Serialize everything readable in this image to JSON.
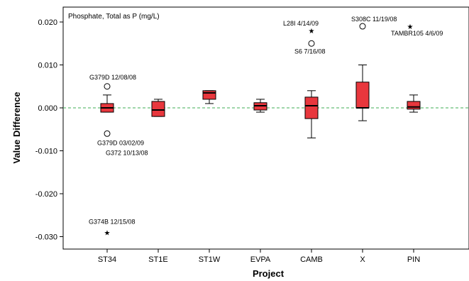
{
  "chart_data": {
    "type": "boxplot",
    "title": "Phosphate, Total as P (mg/L)",
    "xlabel": "Project",
    "ylabel": "Value Difference",
    "ylim": [
      -0.033,
      0.022
    ],
    "yticks": [
      0.02,
      0.01,
      0.0,
      -0.01,
      -0.02,
      -0.03
    ],
    "ytick_labels": [
      "0.020",
      "0.010",
      "0.000",
      "-0.010",
      "-0.020",
      "-0.030"
    ],
    "reference_line": 0.0,
    "box_color": "#e8373d",
    "reference_line_color": "#3fae56",
    "categories": [
      "ST34",
      "ST1E",
      "ST1W",
      "EVPA",
      "CAMB",
      "X",
      "PIN"
    ],
    "boxes": [
      {
        "category": "ST34",
        "whisker_low": -0.001,
        "q1": -0.001,
        "median": 0.0,
        "q3": 0.001,
        "whisker_high": 0.003
      },
      {
        "category": "ST1E",
        "whisker_low": -0.002,
        "q1": -0.002,
        "median": -0.0005,
        "q3": 0.0015,
        "whisker_high": 0.002
      },
      {
        "category": "ST1W",
        "whisker_low": 0.001,
        "q1": 0.002,
        "median": 0.0035,
        "q3": 0.004,
        "whisker_high": 0.004
      },
      {
        "category": "EVPA",
        "whisker_low": -0.001,
        "q1": -0.0005,
        "median": 0.0005,
        "q3": 0.0012,
        "whisker_high": 0.002
      },
      {
        "category": "CAMB",
        "whisker_low": -0.007,
        "q1": -0.0025,
        "median": 0.0005,
        "q3": 0.0025,
        "whisker_high": 0.004
      },
      {
        "category": "X",
        "whisker_low": -0.003,
        "q1": 0.0,
        "median": 0.0,
        "q3": 0.006,
        "whisker_high": 0.01
      },
      {
        "category": "PIN",
        "whisker_low": -0.001,
        "q1": -0.0003,
        "median": 0.0002,
        "q3": 0.0015,
        "whisker_high": 0.003
      }
    ],
    "outliers": [
      {
        "category": "ST34",
        "value": 0.005,
        "marker": "circle",
        "label": "G379D 12/08/08"
      },
      {
        "category": "ST34",
        "value": -0.006,
        "marker": "circle",
        "label": "G379D 03/02/09"
      },
      {
        "category": "ST34",
        "value": -0.006,
        "marker": "circle",
        "label": "G372 10/13/08"
      },
      {
        "category": "ST34",
        "value": -0.029,
        "marker": "star",
        "label": "G374B 12/15/08"
      },
      {
        "category": "CAMB",
        "value": 0.018,
        "marker": "star",
        "label": "L28I 4/14/09"
      },
      {
        "category": "CAMB",
        "value": 0.015,
        "marker": "circle",
        "label": "S6 7/16/08"
      },
      {
        "category": "X",
        "value": 0.019,
        "marker": "circle",
        "label": "S308C 11/19/08"
      },
      {
        "category": "PIN",
        "value": 0.019,
        "marker": "star",
        "label": "TAMBR105 4/6/09"
      }
    ]
  }
}
